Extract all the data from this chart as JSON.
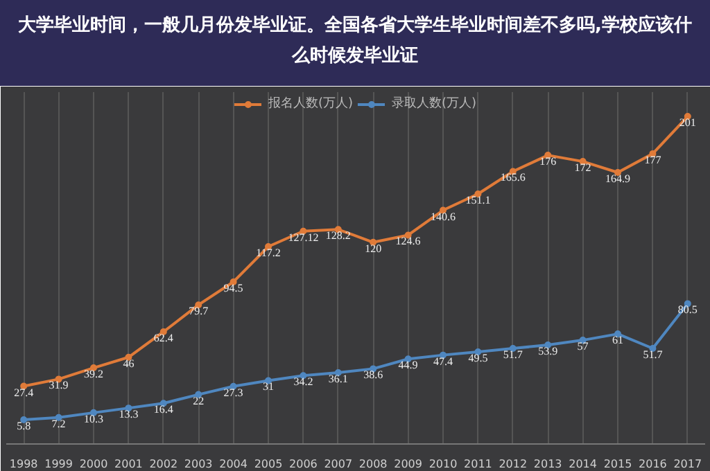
{
  "chart_data": {
    "type": "line",
    "title": "大学毕业时间，一般几月份发毕业证。全国各省大学生毕业时间差不多吗,学校应该什么时候发毕业证",
    "categories": [
      "1998",
      "1999",
      "2000",
      "2001",
      "2002",
      "2003",
      "2004",
      "2005",
      "2006",
      "2007",
      "2008",
      "2009",
      "2010",
      "2011",
      "2012",
      "2013",
      "2014",
      "2015",
      "2016",
      "2017"
    ],
    "series": [
      {
        "name": "报名人数(万人)",
        "color": "#e07b39",
        "values": [
          27.4,
          31.9,
          39.2,
          46,
          62.4,
          79.7,
          94.5,
          117.2,
          127.12,
          128.2,
          120,
          124.6,
          140.6,
          151.1,
          165.6,
          176,
          172,
          164.9,
          177,
          201
        ]
      },
      {
        "name": "录取人数(万人)",
        "color": "#4f87c0",
        "values": [
          5.8,
          7.2,
          10.3,
          13.3,
          16.4,
          22,
          27.3,
          31,
          34.2,
          36.1,
          38.6,
          44.9,
          47.4,
          49.5,
          51.7,
          53.9,
          57,
          61,
          51.7,
          80.5
        ]
      }
    ],
    "data_labels": true,
    "legend": "top",
    "grid": "x",
    "marker": "circle",
    "line_style": "solid"
  }
}
